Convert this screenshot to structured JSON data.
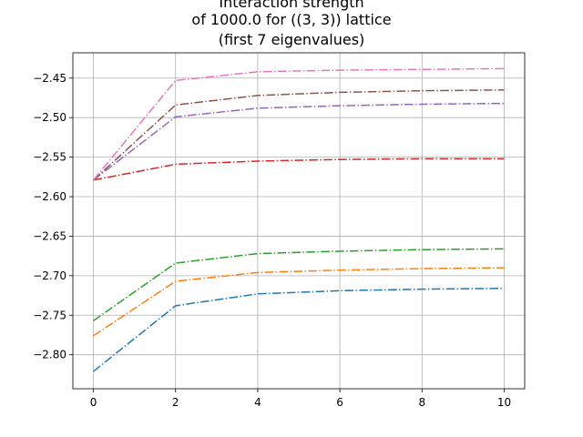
{
  "chart_data": {
    "type": "line",
    "title_lines": [
      "Interaction strength",
      "of 1000.0 for ((3, 3)) lattice",
      "(first 7 eigenvalues)"
    ],
    "xlabel": "",
    "ylabel": "",
    "x": [
      0,
      2,
      4,
      6,
      8,
      10
    ],
    "xlim": [
      -0.5,
      10.5
    ],
    "ylim": [
      -2.843,
      -2.418
    ],
    "xticks": [
      0,
      2,
      4,
      6,
      8,
      10
    ],
    "yticks": [
      -2.8,
      -2.75,
      -2.7,
      -2.65,
      -2.6,
      -2.55,
      -2.5,
      -2.45
    ],
    "grid": true,
    "line_style": "dash-dot",
    "series": [
      {
        "color": "#1f77b4",
        "values": [
          -2.821,
          -2.738,
          -2.723,
          -2.719,
          -2.717,
          -2.716
        ]
      },
      {
        "color": "#ff7f0e",
        "values": [
          -2.776,
          -2.707,
          -2.696,
          -2.693,
          -2.691,
          -2.69
        ]
      },
      {
        "color": "#2ca02c",
        "values": [
          -2.757,
          -2.684,
          -2.672,
          -2.669,
          -2.667,
          -2.666
        ]
      },
      {
        "color": "#d62728",
        "values": [
          -2.579,
          -2.559,
          -2.555,
          -2.553,
          -2.552,
          -2.552
        ]
      },
      {
        "color": "#9467bd",
        "values": [
          -2.579,
          -2.499,
          -2.488,
          -2.485,
          -2.483,
          -2.482
        ]
      },
      {
        "color": "#8c564b",
        "values": [
          -2.579,
          -2.484,
          -2.472,
          -2.468,
          -2.466,
          -2.465
        ]
      },
      {
        "color": "#e377c2",
        "values": [
          -2.579,
          -2.453,
          -2.442,
          -2.44,
          -2.439,
          -2.438
        ]
      }
    ]
  }
}
